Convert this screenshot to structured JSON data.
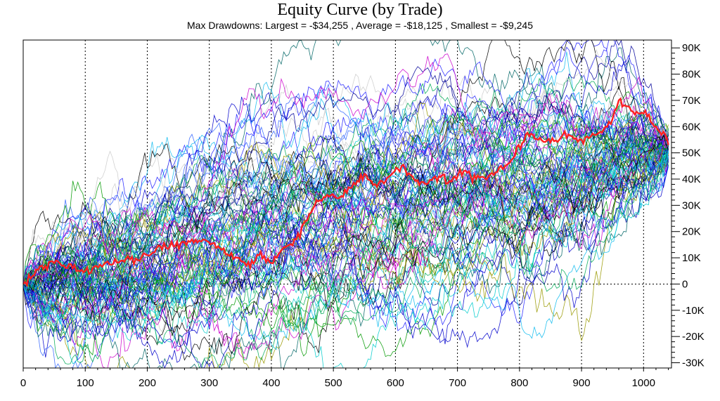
{
  "chart_data": {
    "type": "line",
    "title": "Equity Curve (by Trade)",
    "subtitle": "Max Drawdowns:  Largest = -$34,255 , Average = -$18,125 , Smallest = -$9,245",
    "xlabel": "",
    "ylabel": "",
    "xlim": [
      0,
      1045
    ],
    "ylim": [
      -32000,
      93000
    ],
    "x_ticks": [
      0,
      100,
      200,
      300,
      400,
      500,
      600,
      700,
      800,
      900,
      1000
    ],
    "y_ticks": [
      -30000,
      -20000,
      -10000,
      0,
      10000,
      20000,
      30000,
      40000,
      50000,
      60000,
      70000,
      80000,
      90000
    ],
    "y_tick_labels": [
      "-30K",
      "-20K",
      "-10K",
      "0",
      "10K",
      "20K",
      "30K",
      "40K",
      "50K",
      "60K",
      "70K",
      "80K",
      "90K"
    ],
    "grid": true,
    "y_axis_side": "right",
    "simulation_count": 100,
    "trades_per_run": 1040,
    "end_value_approx": 52000,
    "highlight_series": {
      "color": "#ff2020",
      "points": [
        [
          0,
          0
        ],
        [
          15,
          3000
        ],
        [
          30,
          7000
        ],
        [
          50,
          8000
        ],
        [
          80,
          6000
        ],
        [
          100,
          5000
        ],
        [
          130,
          7500
        ],
        [
          160,
          9000
        ],
        [
          200,
          11000
        ],
        [
          230,
          14000
        ],
        [
          260,
          16000
        ],
        [
          290,
          17000
        ],
        [
          320,
          13000
        ],
        [
          345,
          10000
        ],
        [
          360,
          7000
        ],
        [
          380,
          11000
        ],
        [
          400,
          8000
        ],
        [
          420,
          14000
        ],
        [
          440,
          17000
        ],
        [
          455,
          24000
        ],
        [
          470,
          30000
        ],
        [
          490,
          34000
        ],
        [
          510,
          33000
        ],
        [
          530,
          37000
        ],
        [
          550,
          42000
        ],
        [
          570,
          37000
        ],
        [
          590,
          41000
        ],
        [
          610,
          45000
        ],
        [
          630,
          40000
        ],
        [
          650,
          38000
        ],
        [
          670,
          41000
        ],
        [
          690,
          39000
        ],
        [
          710,
          43000
        ],
        [
          730,
          40000
        ],
        [
          750,
          41000
        ],
        [
          770,
          45000
        ],
        [
          790,
          48000
        ],
        [
          810,
          57000
        ],
        [
          830,
          55000
        ],
        [
          850,
          54000
        ],
        [
          870,
          57000
        ],
        [
          900,
          55000
        ],
        [
          930,
          58000
        ],
        [
          950,
          63000
        ],
        [
          960,
          70000
        ],
        [
          980,
          66000
        ],
        [
          1000,
          65000
        ],
        [
          1020,
          60000
        ],
        [
          1035,
          57000
        ],
        [
          1040,
          53000
        ]
      ]
    },
    "series_colors": [
      "#0000cc",
      "#000099",
      "#2020ff",
      "#009900",
      "#00aa55",
      "#00cccc",
      "#11bbee",
      "#000000",
      "#cc00cc",
      "#999900",
      "#cccccc",
      "#3366ff",
      "#006666"
    ]
  }
}
